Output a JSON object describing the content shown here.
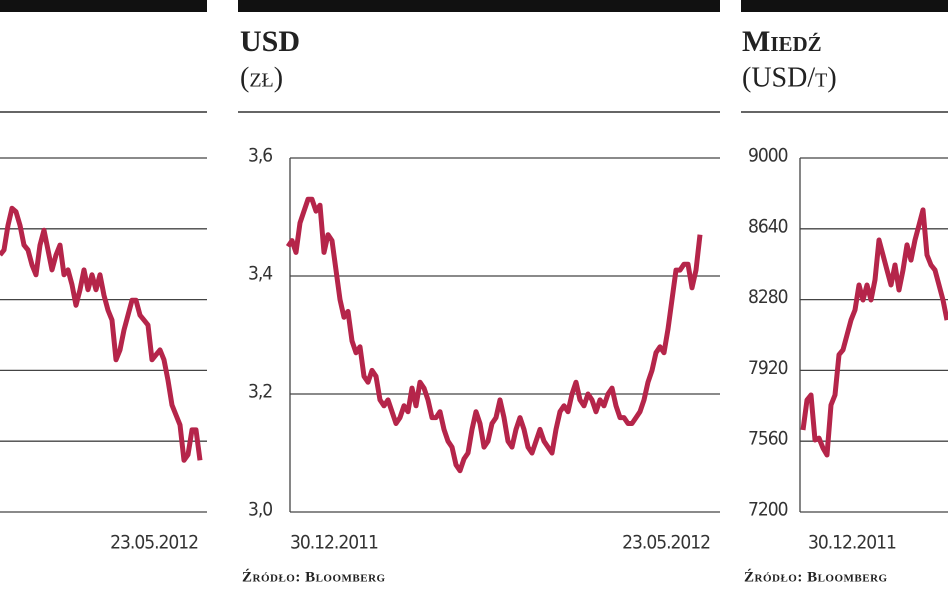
{
  "chart_data": [
    {
      "type": "line",
      "color": "#b5254a",
      "xtick_labels": [
        null,
        "23.05.2012"
      ],
      "ylim": [
        0,
        5
      ],
      "values": [
        3.63,
        3.7,
        4.05,
        4.29,
        4.24,
        4.05,
        3.77,
        3.7,
        3.49,
        3.35,
        3.77,
        3.98,
        3.7,
        3.42,
        3.63,
        3.77,
        3.35,
        3.42,
        3.21,
        2.92,
        3.14,
        3.42,
        3.14,
        3.35,
        3.14,
        3.35,
        3.06,
        2.85,
        2.71,
        2.15,
        2.29,
        2.57,
        2.78,
        2.99,
        2.99,
        2.78,
        2.71,
        2.64,
        2.15,
        2.22,
        2.29,
        2.15,
        1.86,
        1.51,
        1.37,
        1.23,
        0.73,
        0.81,
        1.16,
        1.16,
        0.73
      ]
    },
    {
      "type": "line",
      "title": "USD",
      "subtitle": "(zł)",
      "source": "Źródło: Bloomberg",
      "color": "#b5254a",
      "xtick_labels": [
        "30.12.2011",
        "23.05.2012"
      ],
      "ylim": [
        3.0,
        3.6
      ],
      "yticks": [
        {
          "value": 3.0,
          "label": "3,0"
        },
        {
          "value": 3.2,
          "label": "3,2"
        },
        {
          "value": 3.4,
          "label": "3,4"
        },
        {
          "value": 3.6,
          "label": "3,6"
        }
      ],
      "values": [
        3.45,
        3.46,
        3.44,
        3.49,
        3.51,
        3.53,
        3.53,
        3.51,
        3.52,
        3.44,
        3.47,
        3.46,
        3.41,
        3.36,
        3.33,
        3.34,
        3.29,
        3.27,
        3.28,
        3.23,
        3.22,
        3.24,
        3.23,
        3.19,
        3.18,
        3.19,
        3.17,
        3.15,
        3.16,
        3.18,
        3.17,
        3.21,
        3.18,
        3.22,
        3.21,
        3.19,
        3.16,
        3.16,
        3.17,
        3.14,
        3.12,
        3.11,
        3.08,
        3.07,
        3.09,
        3.1,
        3.14,
        3.17,
        3.15,
        3.11,
        3.12,
        3.15,
        3.16,
        3.19,
        3.16,
        3.12,
        3.11,
        3.14,
        3.16,
        3.14,
        3.11,
        3.1,
        3.12,
        3.14,
        3.12,
        3.11,
        3.1,
        3.14,
        3.17,
        3.18,
        3.17,
        3.2,
        3.22,
        3.19,
        3.18,
        3.2,
        3.19,
        3.17,
        3.19,
        3.18,
        3.2,
        3.21,
        3.18,
        3.16,
        3.16,
        3.15,
        3.15,
        3.16,
        3.17,
        3.19,
        3.22,
        3.24,
        3.27,
        3.28,
        3.27,
        3.31,
        3.36,
        3.41,
        3.41,
        3.42,
        3.42,
        3.38,
        3.41,
        3.47
      ]
    },
    {
      "type": "line",
      "title": "Miedź",
      "subtitle": "(USD/t)",
      "source": "Źródło: Bloomberg",
      "color": "#b5254a",
      "xtick_labels": [
        "30.12.2011",
        null
      ],
      "ylim": [
        7200,
        9000
      ],
      "yticks": [
        7200,
        7560,
        7920,
        8280,
        8640,
        9000
      ],
      "values": [
        7617,
        7769,
        7795,
        7566,
        7576,
        7525,
        7490,
        7744,
        7795,
        8000,
        8024,
        8100,
        8176,
        8227,
        8354,
        8278,
        8354,
        8278,
        8380,
        8583,
        8507,
        8430,
        8354,
        8456,
        8329,
        8430,
        8558,
        8481,
        8583,
        8659,
        8736,
        8507,
        8456,
        8430,
        8354,
        8278,
        8176
      ]
    }
  ]
}
